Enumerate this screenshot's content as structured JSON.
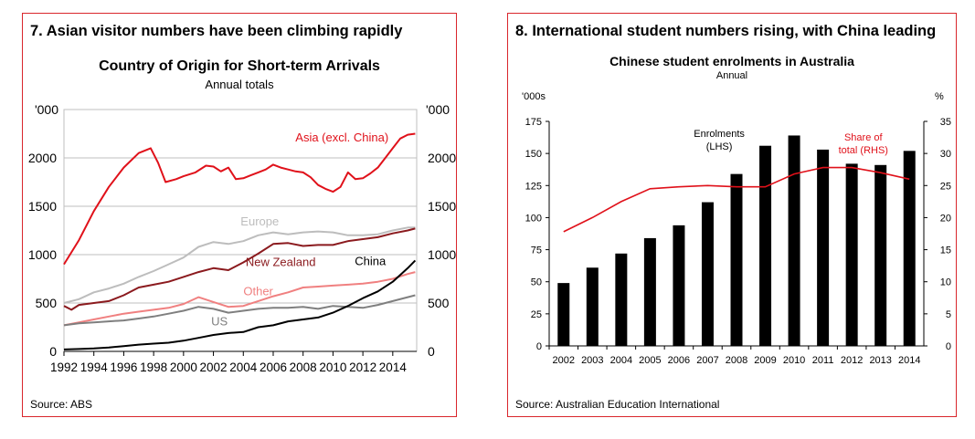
{
  "chart_data": [
    {
      "type": "line",
      "panel_title": "7. Asian visitor numbers have been climbing rapidly",
      "title": "Country of Origin for Short-term Arrivals",
      "subtitle": "Annual totals",
      "left_unit": "'000",
      "right_unit": "'000",
      "ylim": [
        0,
        2500
      ],
      "y_ticks": [
        0,
        500,
        1000,
        1500,
        2000
      ],
      "xlim": [
        1992,
        2015.6
      ],
      "x_ticks": [
        1992,
        1994,
        1996,
        1998,
        2000,
        2002,
        2004,
        2006,
        2008,
        2010,
        2012,
        2014
      ],
      "grid": true,
      "source": "Source: ABS",
      "series": [
        {
          "name": "Asia (excl. China)",
          "color": "#e0111a",
          "x": [
            1992,
            1993,
            1994,
            1995,
            1996,
            1997,
            1997.8,
            1998.3,
            1998.8,
            1999.5,
            2000,
            2000.8,
            2001.5,
            2002,
            2002.5,
            2003,
            2003.5,
            2004,
            2004.5,
            2005,
            2005.5,
            2006,
            2006.5,
            2007,
            2007.5,
            2008,
            2008.5,
            2009,
            2009.5,
            2010,
            2010.5,
            2011,
            2011.5,
            2012,
            2012.5,
            2013,
            2013.5,
            2014,
            2014.5,
            2015,
            2015.5
          ],
          "y": [
            900,
            1150,
            1450,
            1700,
            1900,
            2050,
            2100,
            1950,
            1750,
            1780,
            1810,
            1850,
            1920,
            1910,
            1860,
            1900,
            1780,
            1790,
            1820,
            1850,
            1880,
            1930,
            1900,
            1880,
            1860,
            1850,
            1800,
            1720,
            1680,
            1650,
            1700,
            1850,
            1780,
            1790,
            1840,
            1900,
            2000,
            2100,
            2200,
            2240,
            2250
          ]
        },
        {
          "name": "Europe",
          "color": "#bdbdbd",
          "x": [
            1992,
            1993,
            1994,
            1995,
            1996,
            1997,
            1998,
            1999,
            2000,
            2001,
            2002,
            2003,
            2004,
            2005,
            2006,
            2007,
            2008,
            2009,
            2010,
            2011,
            2012,
            2013,
            2014,
            2015,
            2015.5
          ],
          "y": [
            500,
            540,
            610,
            650,
            700,
            770,
            830,
            900,
            970,
            1080,
            1130,
            1110,
            1140,
            1200,
            1230,
            1210,
            1230,
            1240,
            1230,
            1200,
            1200,
            1210,
            1250,
            1280,
            1280
          ]
        },
        {
          "name": "New Zealand",
          "color": "#8b1a1e",
          "x": [
            1992,
            1992.5,
            1993,
            1994,
            1995,
            1996,
            1997,
            1998,
            1999,
            2000,
            2001,
            2002,
            2003,
            2004,
            2005,
            2006,
            2007,
            2008,
            2009,
            2010,
            2011,
            2012,
            2013,
            2014,
            2015,
            2015.5
          ],
          "y": [
            470,
            430,
            480,
            500,
            520,
            580,
            660,
            690,
            720,
            770,
            820,
            860,
            840,
            920,
            1010,
            1110,
            1120,
            1090,
            1100,
            1100,
            1140,
            1160,
            1180,
            1220,
            1250,
            1270
          ]
        },
        {
          "name": "Other",
          "color": "#f08080",
          "x": [
            1992,
            1993,
            1994,
            1995,
            1996,
            1997,
            1998,
            1999,
            2000,
            2001,
            2002,
            2003,
            2004,
            2005,
            2006,
            2007,
            2008,
            2009,
            2010,
            2011,
            2012,
            2013,
            2014,
            2015,
            2015.5
          ],
          "y": [
            270,
            300,
            330,
            360,
            390,
            410,
            430,
            450,
            490,
            560,
            510,
            460,
            470,
            520,
            570,
            610,
            660,
            670,
            680,
            690,
            700,
            720,
            750,
            800,
            820
          ]
        },
        {
          "name": "US",
          "color": "#7f7f7f",
          "x": [
            1992,
            1993,
            1994,
            1995,
            1996,
            1997,
            1998,
            1999,
            2000,
            2001,
            2002,
            2003,
            2004,
            2005,
            2006,
            2007,
            2008,
            2009,
            2010,
            2011,
            2012,
            2013,
            2014,
            2015,
            2015.5
          ],
          "y": [
            270,
            290,
            300,
            310,
            320,
            340,
            360,
            390,
            420,
            460,
            440,
            400,
            420,
            440,
            450,
            450,
            460,
            440,
            470,
            460,
            450,
            480,
            520,
            560,
            580
          ]
        },
        {
          "name": "China",
          "color": "#000000",
          "x": [
            1992,
            1993,
            1994,
            1995,
            1996,
            1997,
            1998,
            1999,
            2000,
            2001,
            2002,
            2003,
            2004,
            2005,
            2006,
            2007,
            2008,
            2009,
            2010,
            2011,
            2012,
            2013,
            2014,
            2015,
            2015.5
          ],
          "y": [
            20,
            25,
            30,
            40,
            55,
            70,
            80,
            90,
            110,
            140,
            170,
            190,
            200,
            250,
            270,
            310,
            330,
            350,
            400,
            470,
            550,
            620,
            720,
            860,
            940
          ]
        }
      ],
      "labels": [
        {
          "text": "Asia (excl. China)",
          "series": 0
        },
        {
          "text": "Europe",
          "series": 1
        },
        {
          "text": "New Zealand",
          "series": 2
        },
        {
          "text": "China",
          "series": 5
        },
        {
          "text": "Other",
          "series": 3
        },
        {
          "text": "US",
          "series": 4
        }
      ]
    },
    {
      "type": "bar",
      "panel_title": "8. International student numbers rising, with China leading",
      "title": "Chinese student enrolments in Australia",
      "subtitle": "Annual",
      "left_unit": "'000s",
      "right_unit": "%",
      "categories": [
        "2002",
        "2003",
        "2004",
        "2005",
        "2006",
        "2007",
        "2008",
        "2009",
        "2010",
        "2011",
        "2012",
        "2013",
        "2014"
      ],
      "ylim": [
        0,
        175
      ],
      "y_ticks": [
        0,
        25,
        50,
        75,
        100,
        125,
        150,
        175
      ],
      "y2lim": [
        0,
        35
      ],
      "y2_ticks": [
        0,
        5,
        10,
        15,
        20,
        25,
        30,
        35
      ],
      "grid": false,
      "source": "Source: Australian Education International",
      "series": [
        {
          "name": "Enrolments (LHS)",
          "axis": "left",
          "color": "#000000",
          "values": [
            49,
            61,
            72,
            84,
            94,
            112,
            134,
            156,
            164,
            153,
            142,
            141,
            152
          ]
        },
        {
          "name": "Share of total (RHS)",
          "axis": "right",
          "color": "#e0111a",
          "values": [
            17.8,
            20,
            22.5,
            24.5,
            24.8,
            25,
            24.8,
            24.8,
            26.8,
            27.8,
            27.8,
            27,
            26
          ]
        }
      ],
      "labels": [
        {
          "lines": [
            "Enrolments",
            "(LHS)"
          ],
          "color": "#000000"
        },
        {
          "lines": [
            "Share of",
            "total (RHS)"
          ],
          "color": "#e0111a"
        }
      ]
    }
  ]
}
